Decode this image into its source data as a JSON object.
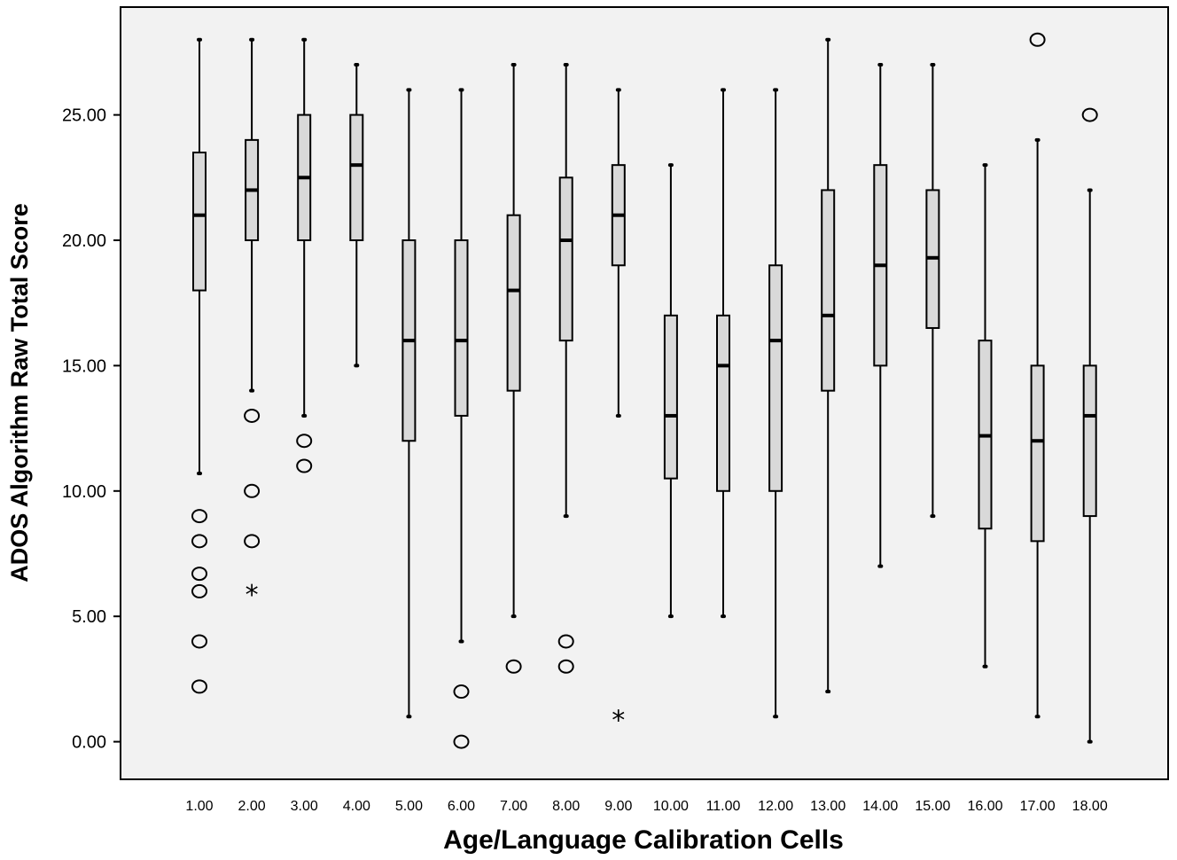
{
  "chart_data": {
    "type": "boxplot",
    "xlabel": "Age/Language Calibration Cells",
    "ylabel": "ADOS Algorithm Raw Total Score",
    "ylim": [
      -1.5,
      29.3
    ],
    "yticks": [
      "0.00",
      "5.00",
      "10.00",
      "15.00",
      "20.00",
      "25.00"
    ],
    "ytick_values": [
      0,
      5,
      10,
      15,
      20,
      25
    ],
    "grid": false,
    "categories": [
      "1.00",
      "2.00",
      "3.00",
      "4.00",
      "5.00",
      "6.00",
      "7.00",
      "8.00",
      "9.00",
      "10.00",
      "11.00",
      "12.00",
      "13.00",
      "14.00",
      "15.00",
      "16.00",
      "17.00",
      "18.00"
    ],
    "boxes": [
      {
        "min": 10.7,
        "q1": 18,
        "median": 21,
        "q3": 23.5,
        "max": 28,
        "outliers": [
          9,
          8,
          6.7,
          6,
          4,
          2.2
        ],
        "extremes": []
      },
      {
        "min": 14,
        "q1": 20,
        "median": 22,
        "q3": 24,
        "max": 28,
        "outliers": [
          13,
          10,
          8
        ],
        "extremes": [
          6
        ]
      },
      {
        "min": 13,
        "q1": 20,
        "median": 22.5,
        "q3": 25,
        "max": 28,
        "outliers": [
          12,
          11
        ],
        "extremes": []
      },
      {
        "min": 15,
        "q1": 20,
        "median": 23,
        "q3": 25,
        "max": 27,
        "outliers": [],
        "extremes": []
      },
      {
        "min": 1,
        "q1": 12,
        "median": 16,
        "q3": 20,
        "max": 26,
        "outliers": [],
        "extremes": []
      },
      {
        "min": 4,
        "q1": 13,
        "median": 16,
        "q3": 20,
        "max": 26,
        "outliers": [
          2,
          0
        ],
        "extremes": []
      },
      {
        "min": 5,
        "q1": 14,
        "median": 18,
        "q3": 21,
        "max": 27,
        "outliers": [
          3
        ],
        "extremes": []
      },
      {
        "min": 9,
        "q1": 16,
        "median": 20,
        "q3": 22.5,
        "max": 27,
        "outliers": [
          4,
          3
        ],
        "extremes": []
      },
      {
        "min": 13,
        "q1": 19,
        "median": 21,
        "q3": 23,
        "max": 26,
        "outliers": [],
        "extremes": [
          1
        ]
      },
      {
        "min": 5,
        "q1": 10.5,
        "median": 13,
        "q3": 17,
        "max": 23,
        "outliers": [],
        "extremes": []
      },
      {
        "min": 5,
        "q1": 10,
        "median": 15,
        "q3": 17,
        "max": 26,
        "outliers": [],
        "extremes": []
      },
      {
        "min": 1,
        "q1": 10,
        "median": 16,
        "q3": 19,
        "max": 26,
        "outliers": [],
        "extremes": []
      },
      {
        "min": 2,
        "q1": 14,
        "median": 17,
        "q3": 22,
        "max": 28,
        "outliers": [],
        "extremes": []
      },
      {
        "min": 7,
        "q1": 15,
        "median": 19,
        "q3": 23,
        "max": 27,
        "outliers": [],
        "extremes": []
      },
      {
        "min": 9,
        "q1": 16.5,
        "median": 19.3,
        "q3": 22,
        "max": 27,
        "outliers": [],
        "extremes": []
      },
      {
        "min": 3,
        "q1": 8.5,
        "median": 12.2,
        "q3": 16,
        "max": 23,
        "outliers": [],
        "extremes": []
      },
      {
        "min": 1,
        "q1": 8,
        "median": 12,
        "q3": 15,
        "max": 24,
        "outliers": [
          28
        ],
        "extremes": []
      },
      {
        "min": 0,
        "q1": 9,
        "median": 13,
        "q3": 15,
        "max": 22,
        "outliers": [
          25
        ],
        "extremes": []
      }
    ],
    "colors": {
      "box_fill": "#d9d9d9",
      "plot_background": "#f2f2f2",
      "line": "#000000"
    }
  }
}
